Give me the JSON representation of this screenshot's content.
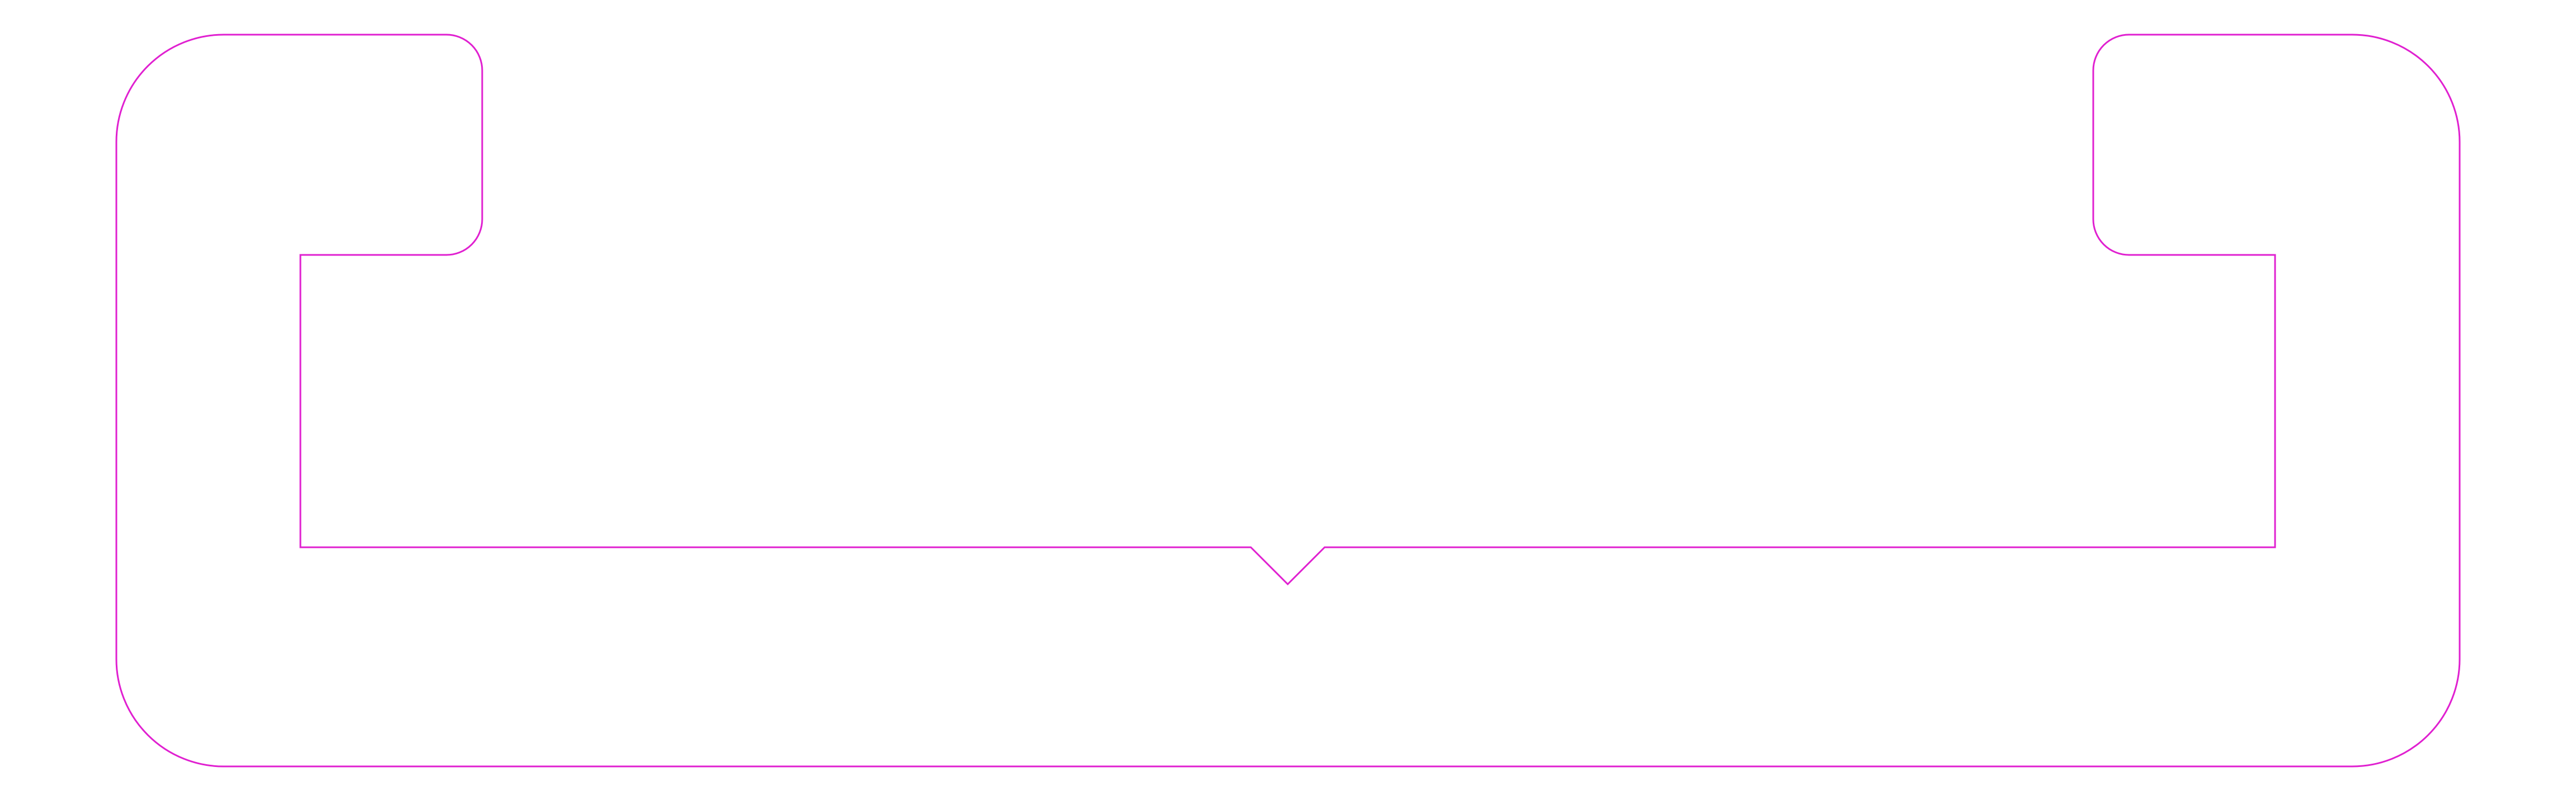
{
  "drawing": {
    "stroke_color": "#e020d0",
    "background_color": "#ffffff"
  }
}
